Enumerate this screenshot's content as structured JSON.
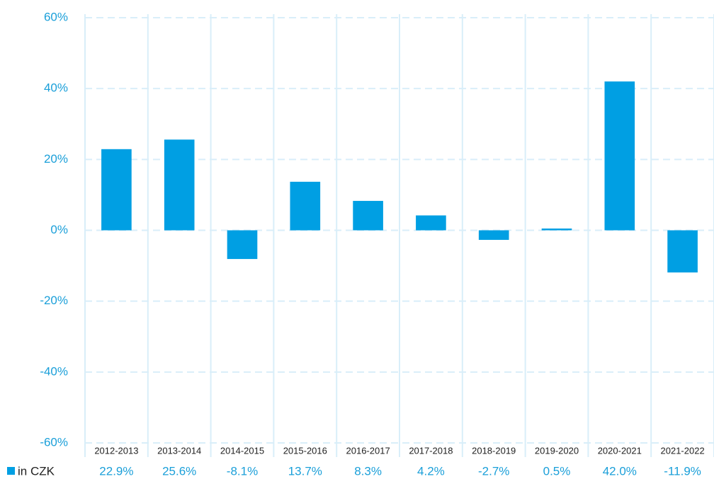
{
  "chart_data": {
    "type": "bar",
    "categories": [
      "2012-2013",
      "2013-2014",
      "2014-2015",
      "2015-2016",
      "2016-2017",
      "2017-2018",
      "2018-2019",
      "2019-2020",
      "2020-2021",
      "2021-2022"
    ],
    "series": [
      {
        "name": "in CZK",
        "color": "#009fe3",
        "values": [
          22.9,
          25.6,
          -8.1,
          13.7,
          8.3,
          4.2,
          -2.7,
          0.5,
          42.0,
          -11.9
        ],
        "value_labels": [
          "22.9%",
          "25.6%",
          "-8.1%",
          "13.7%",
          "8.3%",
          "4.2%",
          "-2.7%",
          "0.5%",
          "42.0%",
          "-11.9%"
        ]
      }
    ],
    "ylim": [
      -60,
      60
    ],
    "yticks": [
      {
        "value": -60,
        "label": "-60%"
      },
      {
        "value": -40,
        "label": "-40%"
      },
      {
        "value": -20,
        "label": "-20%"
      },
      {
        "value": 0,
        "label": "0%"
      },
      {
        "value": 20,
        "label": "20%"
      },
      {
        "value": 40,
        "label": "40%"
      },
      {
        "value": 60,
        "label": "60%"
      }
    ],
    "grid": true
  }
}
